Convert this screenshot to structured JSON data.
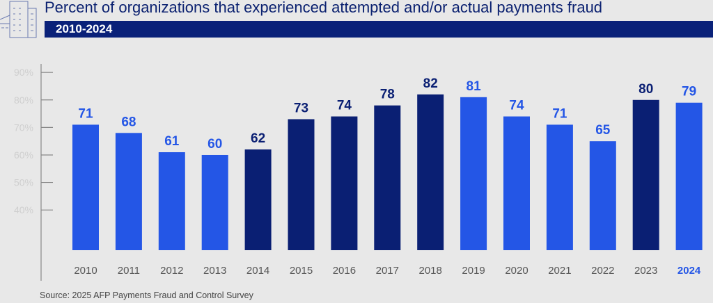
{
  "title": "Percent of organizations that experienced attempted and/or actual payments fraud",
  "subtitle": "2010-2024",
  "source": "Source: 2025 AFP Payments Fraud and Control Survey",
  "colors": {
    "light": "#2456e6",
    "navy": "#0a1f73",
    "title": "#0b2170"
  },
  "chart_data": {
    "type": "bar",
    "title": "Percent of organizations that experienced attempted and/or actual payments fraud",
    "subtitle": "2010-2024",
    "categories": [
      "2010",
      "2011",
      "2012",
      "2013",
      "2014",
      "2015",
      "2016",
      "2017",
      "2018",
      "2019",
      "2020",
      "2021",
      "2022",
      "2023",
      "2024"
    ],
    "values": [
      71,
      68,
      61,
      60,
      62,
      73,
      74,
      78,
      82,
      81,
      74,
      71,
      65,
      80,
      79
    ],
    "bar_colors": [
      "light",
      "light",
      "light",
      "light",
      "navy",
      "navy",
      "navy",
      "navy",
      "navy",
      "light",
      "light",
      "light",
      "light",
      "navy",
      "light"
    ],
    "yticks": [
      "90%",
      "80%",
      "70%",
      "60%",
      "50%",
      "40%"
    ],
    "ytick_values": [
      90,
      80,
      70,
      60,
      50,
      40
    ],
    "ylim": [
      25,
      95
    ],
    "grid": false,
    "highlight_category": "2024"
  }
}
